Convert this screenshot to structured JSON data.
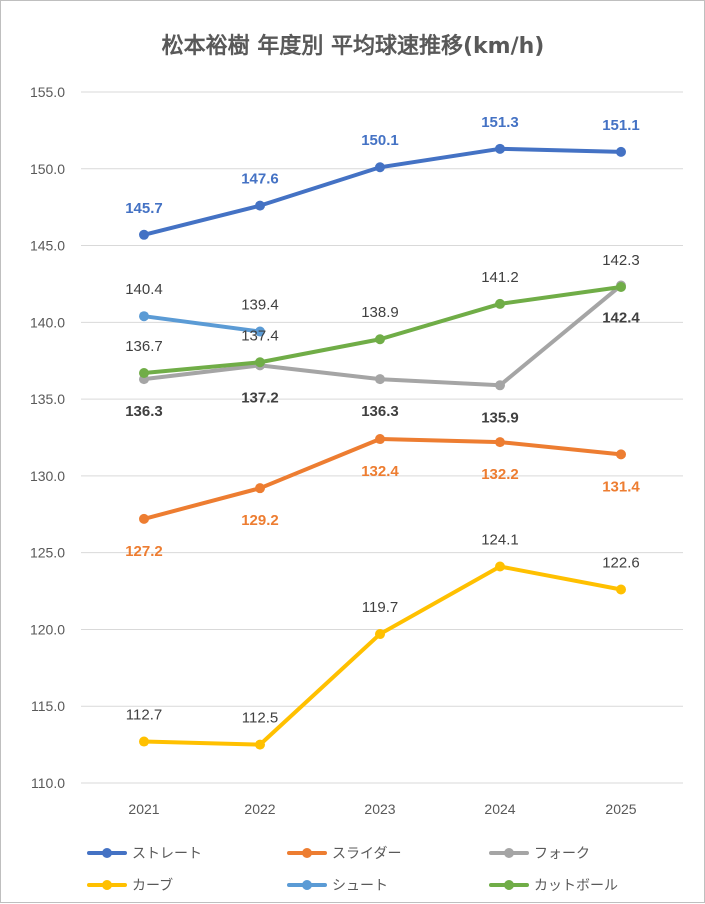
{
  "chart_data": {
    "type": "line",
    "title": "松本裕樹 年度別 平均球速推移(km/h)",
    "xlabel": "",
    "ylabel": "",
    "categories": [
      "2021",
      "2022",
      "2023",
      "2024",
      "2025"
    ],
    "ylim": [
      110.0,
      155.0
    ],
    "yticks": [
      "110.0",
      "115.0",
      "120.0",
      "125.0",
      "130.0",
      "135.0",
      "140.0",
      "145.0",
      "150.0",
      "155.0"
    ],
    "grid": true,
    "legend_position": "bottom",
    "series": [
      {
        "name": "ストレート",
        "color": "#4472c4",
        "values": [
          145.7,
          147.6,
          150.1,
          151.3,
          151.1
        ],
        "labels": [
          "145.7",
          "147.6",
          "150.1",
          "151.3",
          "151.1"
        ],
        "label_pos": "above",
        "label_bold": true
      },
      {
        "name": "スライダー",
        "color": "#ed7d31",
        "values": [
          127.2,
          129.2,
          132.4,
          132.2,
          131.4
        ],
        "labels": [
          "127.2",
          "129.2",
          "132.4",
          "132.2",
          "131.4"
        ],
        "label_pos": "below",
        "label_bold": true
      },
      {
        "name": "フォーク",
        "color": "#a5a5a5",
        "values": [
          136.3,
          137.2,
          136.3,
          135.9,
          142.4
        ],
        "labels": [
          "136.3",
          "137.2",
          "136.3",
          "135.9",
          "142.4"
        ],
        "label_pos": "below",
        "label_bold": true,
        "label_color": "#404040"
      },
      {
        "name": "カーブ",
        "color": "#ffc000",
        "values": [
          112.7,
          112.5,
          119.7,
          124.1,
          122.6
        ],
        "labels": [
          "112.7",
          "112.5",
          "119.7",
          "124.1",
          "122.6"
        ],
        "label_pos": "above",
        "label_bold": false,
        "label_color": "#404040"
      },
      {
        "name": "シュート",
        "color": "#5b9bd5",
        "values": [
          140.4,
          139.4,
          null,
          null,
          null
        ],
        "labels": [
          "140.4",
          "139.4",
          null,
          null,
          null
        ],
        "label_pos": "above",
        "label_bold": false,
        "label_color": "#404040"
      },
      {
        "name": "カットボール",
        "color": "#70ad47",
        "values": [
          136.7,
          137.4,
          138.9,
          141.2,
          142.3
        ],
        "labels": [
          "136.7",
          "137.4",
          "138.9",
          "141.2",
          "142.3"
        ],
        "label_pos": "above",
        "label_bold": false,
        "label_color": "#404040"
      }
    ]
  }
}
